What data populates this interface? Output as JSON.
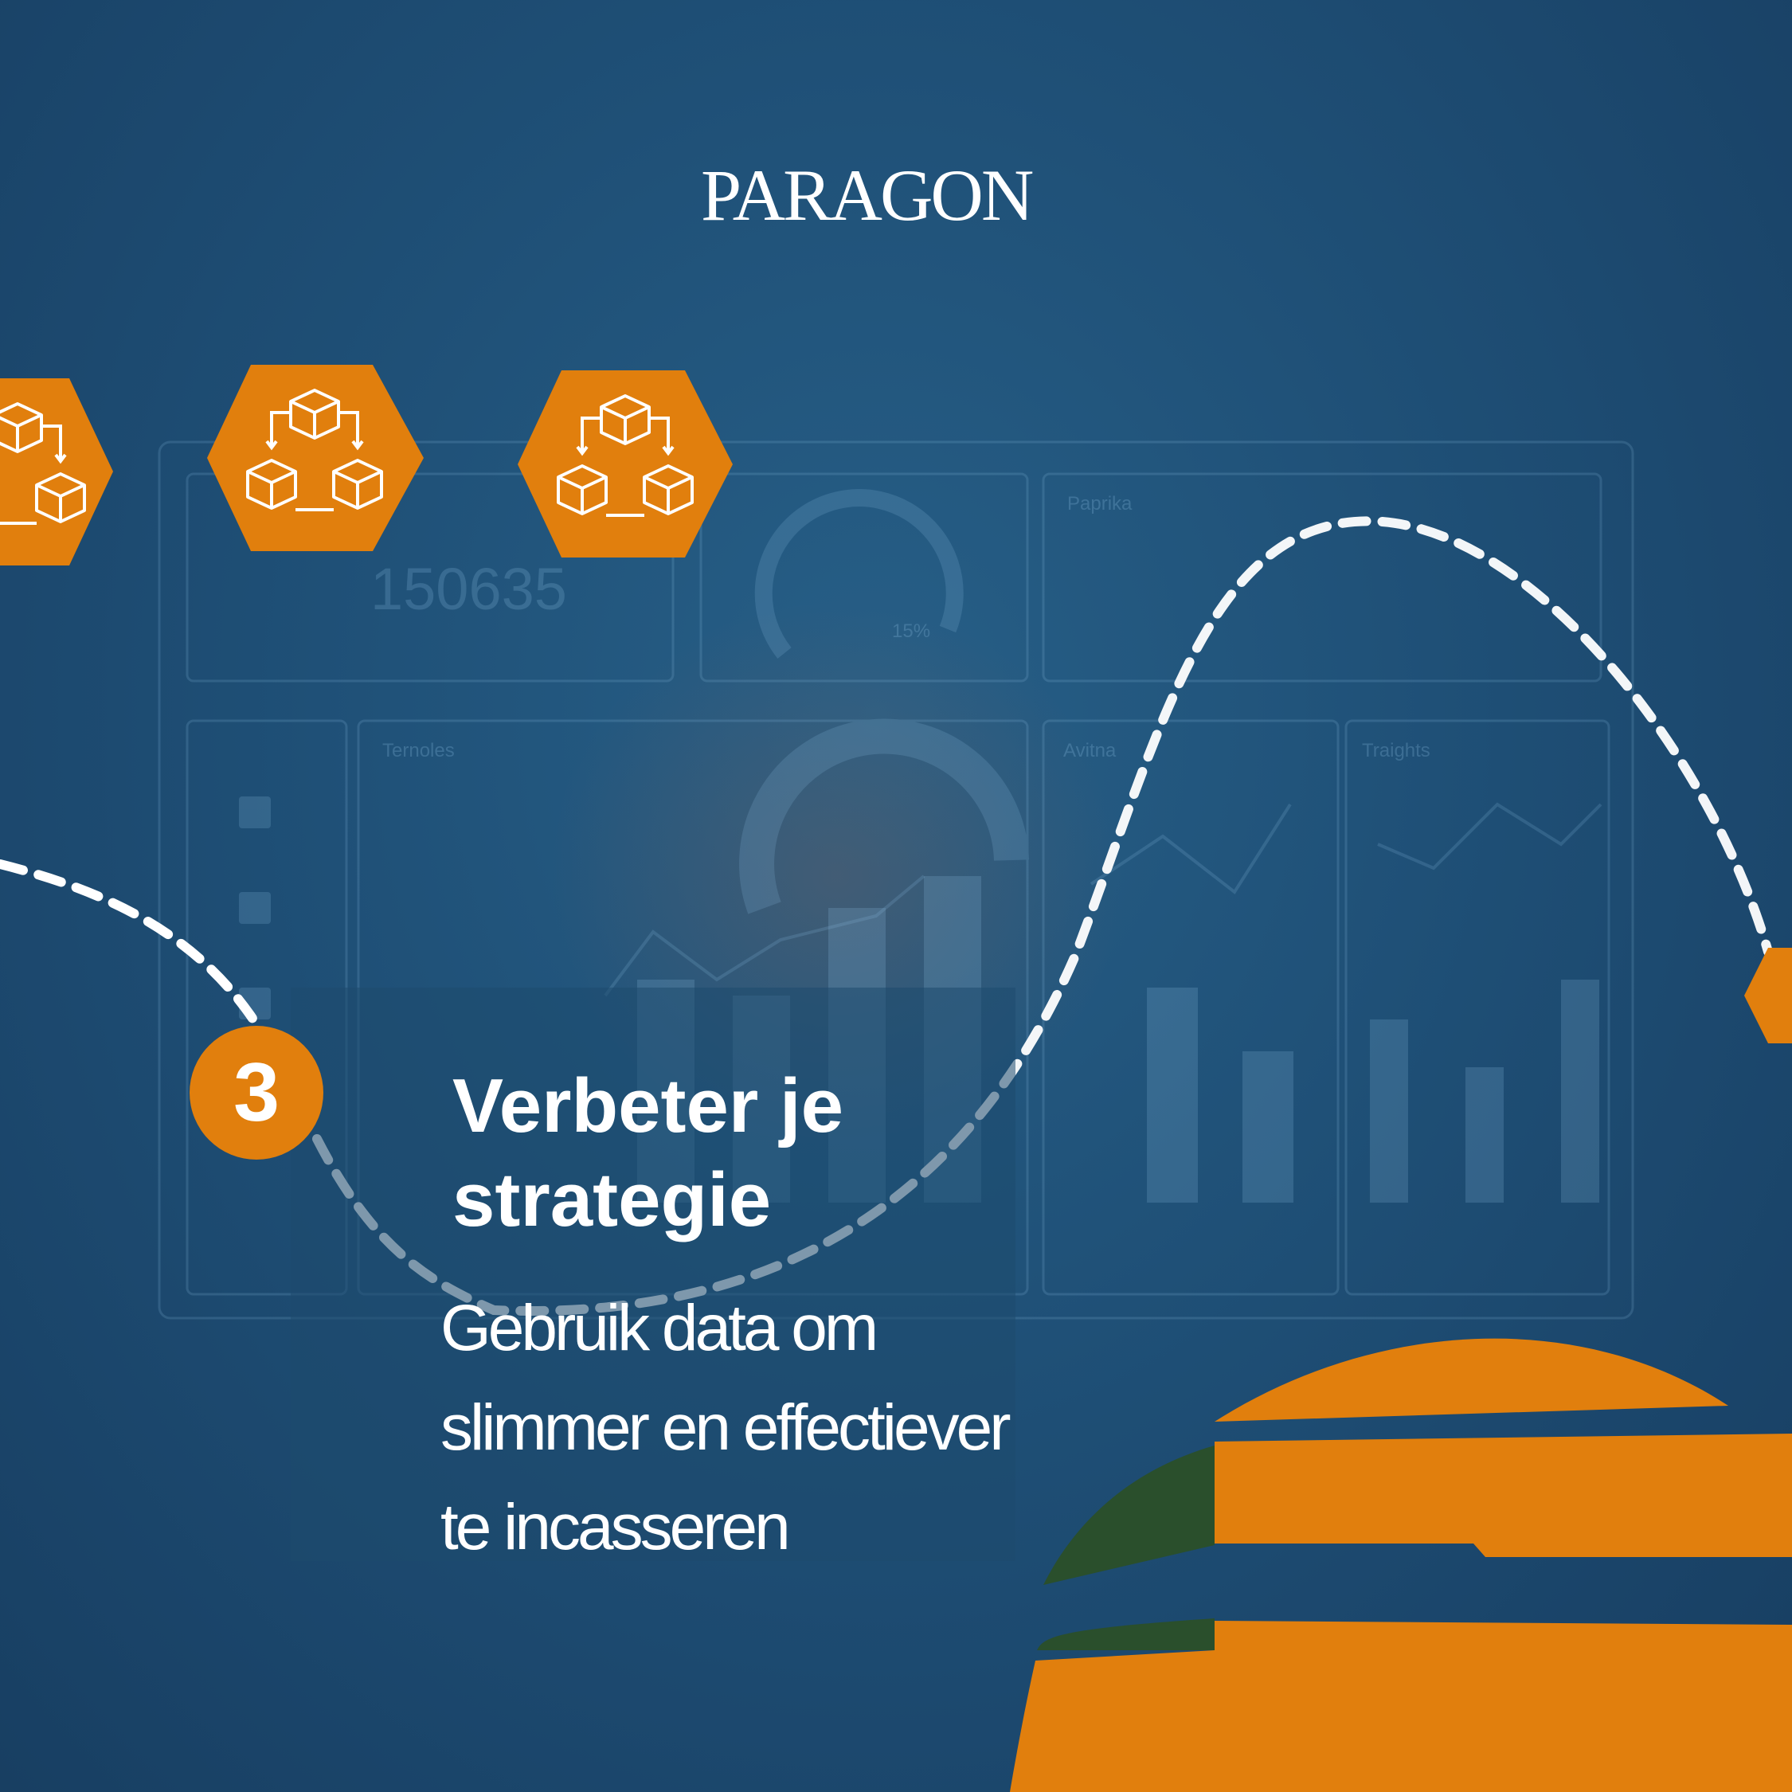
{
  "brand": {
    "logo_text": "PARAGON",
    "text_color": "#ffffff"
  },
  "colors": {
    "background": "#1d4a6e",
    "accent_orange": "#e17f0d",
    "accent_green": "#2a4f2c",
    "path_white": "#ffffff"
  },
  "hexagons": [
    {
      "icon": "cubes-network-icon"
    },
    {
      "icon": "cubes-network-icon"
    },
    {
      "icon": "cubes-network-icon"
    },
    {
      "icon": "hexagon-partial"
    }
  ],
  "dashboard_background": {
    "kpi_value": "150635",
    "gauge_percent": "15%",
    "panel_titles": [
      "Paprika",
      "Ternoles",
      "Avitna",
      "Traights"
    ],
    "description": ""
  },
  "step": {
    "number": "3",
    "title_lines": [
      "Verbeter je",
      "strategie"
    ],
    "body_lines": [
      "Gebruik data om",
      "slimmer en effectiever",
      "te incasseren"
    ]
  }
}
